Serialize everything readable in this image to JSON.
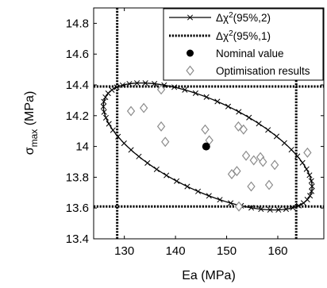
{
  "chart_data": {
    "type": "scatter",
    "xlabel": "Ea (MPa)",
    "ylabel_main": "σ",
    "ylabel_sub": "max",
    "ylabel_unit": " (MPa)",
    "xlim": [
      124,
      169
    ],
    "ylim": [
      13.4,
      14.9
    ],
    "xticks": [
      130,
      140,
      150,
      160
    ],
    "yticks": [
      13.4,
      13.6,
      13.8,
      14,
      14.2,
      14.4,
      14.6,
      14.8
    ],
    "xtick_labels": [
      "130",
      "140",
      "150",
      "160"
    ],
    "ytick_labels": [
      "13.4",
      "13.6",
      "13.8",
      "14",
      "14.2",
      "14.4",
      "14.6",
      "14.8"
    ],
    "grid": false,
    "legend_position": "top-right",
    "legend": [
      {
        "key": "chi2_2",
        "prefix": "Δχ",
        "sup": "2",
        "suffix": "(95%,2)",
        "style": "line-x"
      },
      {
        "key": "chi2_1",
        "prefix": "Δχ",
        "sup": "2",
        "suffix": "(95%,1)",
        "style": "dotted"
      },
      {
        "key": "nominal",
        "label": "Nominal value",
        "style": "filled-circle"
      },
      {
        "key": "optim",
        "label": "Optimisation results",
        "style": "diamond"
      }
    ],
    "ellipse": {
      "name": "Δχ²(95%,2)",
      "center": [
        146.3,
        14.0
      ],
      "semi_major": [
        20.0,
        -0.32
      ],
      "semi_minor": [
        4.0,
        0.26
      ],
      "n_markers": 60
    },
    "chi2_1_bounds": {
      "name": "Δχ²(95%,1)",
      "x": [
        128.6,
        163.6
      ],
      "y": [
        13.61,
        14.39
      ]
    },
    "nominal_value": {
      "x": 146.0,
      "y": 14.0
    },
    "optimisation_results": [
      {
        "x": 131.3,
        "y": 14.23
      },
      {
        "x": 133.8,
        "y": 14.25
      },
      {
        "x": 137.2,
        "y": 14.37
      },
      {
        "x": 137.2,
        "y": 14.13
      },
      {
        "x": 138.0,
        "y": 14.03
      },
      {
        "x": 145.8,
        "y": 14.11
      },
      {
        "x": 146.6,
        "y": 14.04
      },
      {
        "x": 151.0,
        "y": 13.82
      },
      {
        "x": 152.0,
        "y": 13.84
      },
      {
        "x": 152.3,
        "y": 14.13
      },
      {
        "x": 153.3,
        "y": 14.11
      },
      {
        "x": 153.8,
        "y": 13.94
      },
      {
        "x": 154.8,
        "y": 13.74
      },
      {
        "x": 155.3,
        "y": 13.91
      },
      {
        "x": 156.6,
        "y": 13.93
      },
      {
        "x": 157.1,
        "y": 13.9
      },
      {
        "x": 158.3,
        "y": 13.75
      },
      {
        "x": 159.4,
        "y": 13.88
      },
      {
        "x": 152.4,
        "y": 13.61
      },
      {
        "x": 165.8,
        "y": 13.96
      }
    ]
  }
}
